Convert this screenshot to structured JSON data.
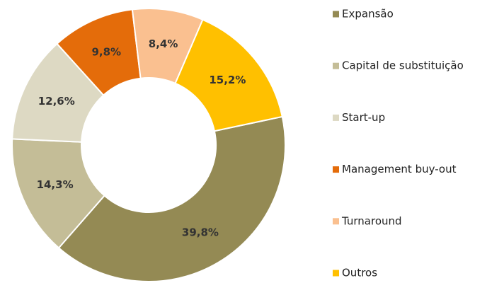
{
  "chart_data": {
    "type": "donut",
    "categories": [
      "Expansão",
      "Capital de substituição",
      "Start-up",
      "Management buy-out",
      "Turnaround",
      "Outros"
    ],
    "values": [
      39.8,
      14.3,
      12.6,
      9.8,
      8.4,
      15.2
    ],
    "value_labels": [
      "39,8%",
      "14,3%",
      "12,6%",
      "9,8%",
      "8,4%",
      "15,2%"
    ],
    "colors": [
      "#948a54",
      "#c4bd97",
      "#ddd9c3",
      "#e46c0a",
      "#fac090",
      "#ffc000"
    ],
    "legend": "right"
  }
}
